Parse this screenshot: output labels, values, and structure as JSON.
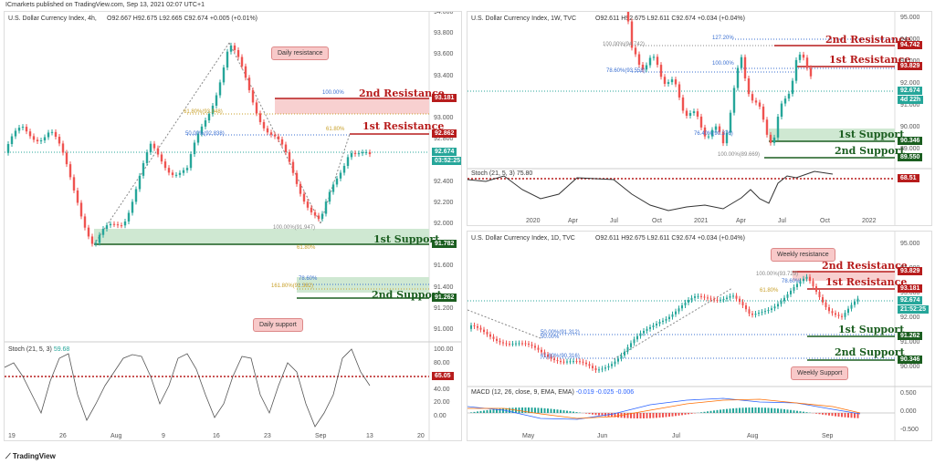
{
  "header": "ICmarkets published on TradingView.com, Sep 13, 2021 02:07 UTC+1",
  "footer": "TradingView",
  "colors": {
    "resistance": "#b71c1c",
    "support": "#1b5e20",
    "bull": "#26a69a",
    "bear": "#ef5350",
    "current": "#26a69a"
  },
  "panels": {
    "h4": {
      "title": "U.S. Dollar Currency Index, 4h,",
      "ohlc": "O92.667 H92.675 L92.665 C92.674 +0.005 (+0.01%)",
      "y_labels": [
        "94.000",
        "93.800",
        "93.600",
        "93.400",
        "93.200",
        "93.000",
        "92.800",
        "92.600",
        "92.400",
        "92.200",
        "92.000",
        "91.800",
        "91.600",
        "91.400",
        "91.200",
        "91.000"
      ],
      "x_labels": [
        "19",
        "26",
        "Aug",
        "9",
        "16",
        "23",
        "Sep",
        "13",
        "20"
      ],
      "price_tags": [
        {
          "v": "93.181",
          "c": "#b71c1c"
        },
        {
          "v": "92.862",
          "c": "#b71c1c"
        },
        {
          "v": "92.674",
          "c": "#26a69a"
        },
        {
          "v": "03:52:25",
          "c": "#26a69a"
        },
        {
          "v": "91.782",
          "c": "#1b5e20"
        },
        {
          "v": "91.262",
          "c": "#1b5e20"
        }
      ],
      "levels": [
        "2nd Resistance",
        "1st Resistance",
        "1st Support",
        "2nd Support"
      ],
      "fib_labels": [
        "100.00%",
        "61.80%(93.048)",
        "50.00%(92.838)",
        "61.80%",
        "100.00%(91.947)",
        "61.80%",
        "78.60%",
        "161.80%(91.382)"
      ],
      "callouts": [
        "Daily resistance",
        "Daily support"
      ],
      "stoch": {
        "title": "Stoch (21, 5, 3)",
        "value": "59.68",
        "y_labels": [
          "100.00",
          "80.00",
          "60.00",
          "40.00",
          "20.00",
          "0.00"
        ],
        "tag": "65.05"
      },
      "candles": [
        92.8,
        93.0,
        92.6,
        92.4,
        92.6,
        92.9,
        92.7,
        92.5,
        92.3,
        92.1,
        92.0,
        91.9,
        92.1,
        92.3,
        92.5,
        92.7,
        92.6,
        92.8,
        93.0,
        93.2,
        92.9,
        92.6,
        92.7,
        93.0,
        93.3,
        93.4,
        93.6,
        93.7,
        93.4,
        93.1,
        92.9,
        93.0,
        92.8,
        92.9,
        92.6,
        92.4,
        92.2,
        92.0,
        92.3,
        92.6,
        92.8,
        92.7,
        92.5,
        92.4,
        92.6
      ]
    },
    "weekly": {
      "title": "U.S. Dollar Currency Index, 1W, TVC",
      "ohlc": "O92.611 H92.675 L92.611 C92.674 +0.034 (+0.04%)",
      "y_labels": [
        "95.000",
        "94.000",
        "93.000",
        "92.000",
        "91.000",
        "90.000",
        "89.000"
      ],
      "x_labels": [
        "2020",
        "Apr",
        "Jul",
        "Oct",
        "2021",
        "Apr",
        "Jul",
        "Oct",
        "2022"
      ],
      "price_tags": [
        {
          "v": "94.742",
          "c": "#b71c1c"
        },
        {
          "v": "93.829",
          "c": "#b71c1c"
        },
        {
          "v": "92.674",
          "c": "#26a69a"
        },
        {
          "v": "4d 22h",
          "c": "#26a69a"
        },
        {
          "v": "90.346",
          "c": "#1b5e20"
        },
        {
          "v": "89.550",
          "c": "#1b5e20"
        }
      ],
      "levels": [
        "2nd Resistance",
        "1st Resistance",
        "1st Support",
        "2nd Support"
      ],
      "fib_labels": [
        "127.20%",
        "100.00%(94.742)",
        "78.60%(93.558)",
        "100.00%",
        "76.40%(90.376)",
        "100.00%(89.669)"
      ],
      "stoch": {
        "title": "Stoch (21, 5, 3)",
        "value": "75.80",
        "y_labels": [
          "100.00",
          "80.00",
          "60.00",
          "40.00",
          "20.00",
          "0.00"
        ],
        "tag": "68.51"
      }
    },
    "daily": {
      "title": "U.S. Dollar Currency Index, 1D, TVC",
      "ohlc": "O92.611 H92.675 L92.611 C92.674 +0.034 (+0.04%)",
      "y_labels": [
        "95.000",
        "94.000",
        "93.000",
        "92.000",
        "91.000",
        "90.000"
      ],
      "x_labels": [
        "May",
        "Jun",
        "Jul",
        "Aug",
        "Sep"
      ],
      "price_tags": [
        {
          "v": "93.829",
          "c": "#b71c1c"
        },
        {
          "v": "93.181",
          "c": "#b71c1c"
        },
        {
          "v": "92.674",
          "c": "#26a69a"
        },
        {
          "v": "21:52:25",
          "c": "#26a69a"
        },
        {
          "v": "91.262",
          "c": "#1b5e20"
        },
        {
          "v": "90.346",
          "c": "#1b5e20"
        }
      ],
      "levels": [
        "2nd Resistance",
        "1st Resistance",
        "1st Support",
        "2nd Support"
      ],
      "fib_labels": [
        "100.00%(93.729)",
        "78.60%",
        "61.80%",
        "50.00%(91.312)",
        "50.00%",
        "61.80%(90.316)"
      ],
      "callouts": [
        "Weekly resistance",
        "Weekly Support"
      ],
      "macd": {
        "title": "MACD (12, 26, close, 9, EMA, EMA)",
        "values": "-0.019 -0.025 -0.006",
        "y_labels": [
          "0.500",
          "0.000",
          "-0.500"
        ]
      }
    }
  }
}
